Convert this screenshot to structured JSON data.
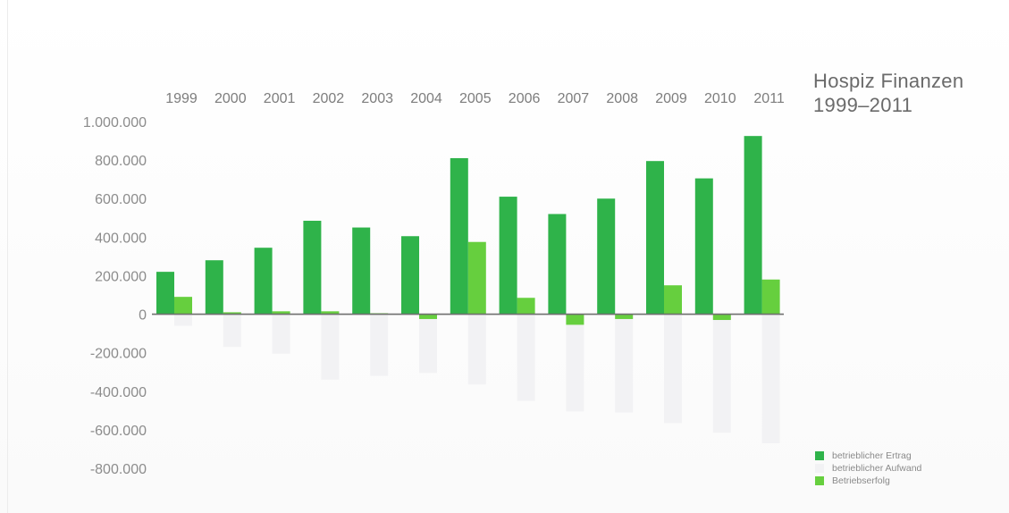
{
  "chart_data": {
    "type": "bar",
    "title": "Hospiz Finanzen",
    "subtitle": "1999–2011",
    "categories": [
      "1999",
      "2000",
      "2001",
      "2002",
      "2003",
      "2004",
      "2005",
      "2006",
      "2007",
      "2008",
      "2009",
      "2010",
      "2011"
    ],
    "series": [
      {
        "name": "betrieblicher Ertrag",
        "color": "#2fb34a",
        "values": [
          220000,
          280000,
          345000,
          485000,
          450000,
          405000,
          810000,
          610000,
          520000,
          600000,
          795000,
          705000,
          925000
        ]
      },
      {
        "name": "betrieblicher Aufwand",
        "color": "#f2f2f4",
        "values": [
          -60000,
          -170000,
          -205000,
          -340000,
          -320000,
          -305000,
          -365000,
          -450000,
          -505000,
          -510000,
          -565000,
          -615000,
          -670000
        ]
      },
      {
        "name": "Betriebserfolg",
        "color": "#66cf3e",
        "values": [
          90000,
          10000,
          15000,
          15000,
          5000,
          -25000,
          375000,
          85000,
          -55000,
          -25000,
          150000,
          -30000,
          180000
        ]
      }
    ],
    "ylim": [
      -800000,
      1000000
    ],
    "yticks": [
      1000000,
      800000,
      600000,
      400000,
      200000,
      0,
      -200000,
      -400000,
      -600000,
      -800000
    ],
    "ytick_labels": [
      "1.000.000",
      "800.000",
      "600.000",
      "400.000",
      "200.000",
      "0",
      "-200.000",
      "-400.000",
      "-600.000",
      "-800.000"
    ],
    "grid": false,
    "legend_position": "bottom-right",
    "xaxis_position": "top"
  }
}
